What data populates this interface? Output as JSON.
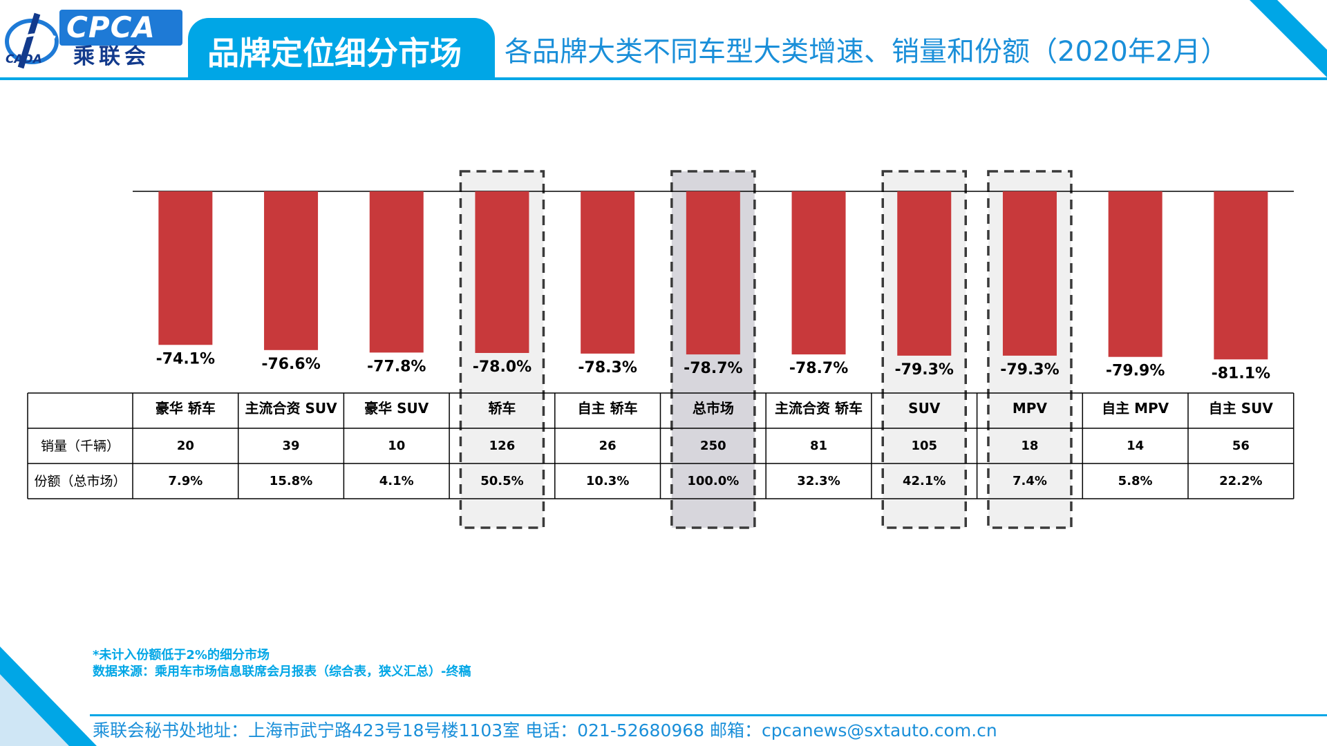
{
  "header": {
    "logo_text": "CPCA",
    "logo_cn": "乘联会",
    "logo_sub": "CADA",
    "title": "品牌定位细分市场",
    "subtitle": "各品牌大类不同车型大类增速、销量和份额（2020年2月）"
  },
  "colors": {
    "bar": "#c8393b",
    "accent": "#00a6e6",
    "highlight_fill": "#f0f0f0",
    "total_fill": "#d7d6dc"
  },
  "chart_data": {
    "type": "bar",
    "categories": [
      "豪华 轿车",
      "主流合资 SUV",
      "豪华 SUV",
      "轿车",
      "自主 轿车",
      "总市场",
      "主流合资 轿车",
      "SUV",
      "MPV",
      "自主 MPV",
      "自主 SUV"
    ],
    "values": [
      -74.1,
      -76.6,
      -77.8,
      -78.0,
      -78.3,
      -78.7,
      -78.7,
      -79.3,
      -79.3,
      -79.9,
      -81.1
    ],
    "value_labels": [
      "-74.1%",
      "-76.6%",
      "-77.8%",
      "-78.0%",
      "-78.3%",
      "-78.7%",
      "-78.7%",
      "-79.3%",
      "-79.3%",
      "-79.9%",
      "-81.1%"
    ],
    "value_unit": "%",
    "highlighted": [
      "轿车",
      "总市场",
      "SUV",
      "MPV"
    ],
    "total_category": "总市场"
  },
  "table": {
    "rows": [
      {
        "label": "销量（千辆）",
        "values": [
          "20",
          "39",
          "10",
          "126",
          "26",
          "250",
          "81",
          "105",
          "18",
          "14",
          "56"
        ]
      },
      {
        "label": "份额（总市场）",
        "values": [
          "7.9%",
          "15.8%",
          "4.1%",
          "50.5%",
          "10.3%",
          "100.0%",
          "32.3%",
          "42.1%",
          "7.4%",
          "5.8%",
          "22.2%"
        ]
      }
    ]
  },
  "notes": {
    "note1": "*未计入份额低于2%的细分市场",
    "note2": "数据来源：乘用车市场信息联席会月报表（综合表，狭义汇总）-终稿"
  },
  "footer": {
    "text": "乘联会秘书处地址：上海市武宁路423号18号楼1103室  电话：021-52680968   邮箱：cpcanews@sxtauto.com.cn"
  }
}
